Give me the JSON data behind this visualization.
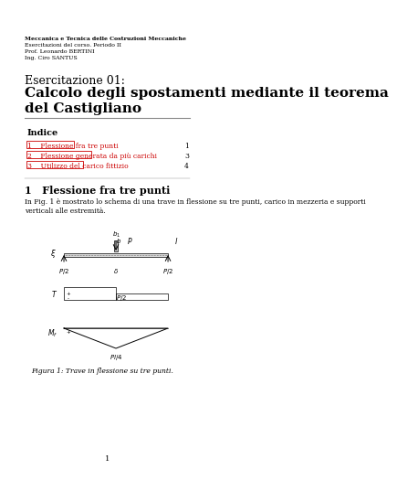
{
  "bg_color": "#ffffff",
  "header_bold": "Meccanica e Tecnica delle Costruzioni Meccaniche",
  "header_lines": [
    "Esercitazioni del corso. Periodo II",
    "Prof. Leonardo BERTINI",
    "Ing. Ciro SANTUS"
  ],
  "pre_title": "Esercitazione 01:",
  "title": "Calcolo degli spostamenti mediante il teorema\ndel Castigliano",
  "index_title": "Indice",
  "toc_items": [
    {
      "num": "1",
      "text": "Flessione fra tre punti",
      "page": "1"
    },
    {
      "num": "2",
      "text": "Flessione generata da più carichi",
      "page": "3"
    },
    {
      "num": "3",
      "text": "Utilizzo del carico fittizio",
      "page": "4"
    }
  ],
  "section_title": "1   Flessione fra tre punti",
  "section_text": "In Fig. 1 è mostrato lo schema di una trave in flessione su tre punti, carico in mezzeria e supporti\nverticali alle estremità.",
  "fig_caption": "Figura 1: Trave in flessione su tre punti.",
  "page_num": "1"
}
